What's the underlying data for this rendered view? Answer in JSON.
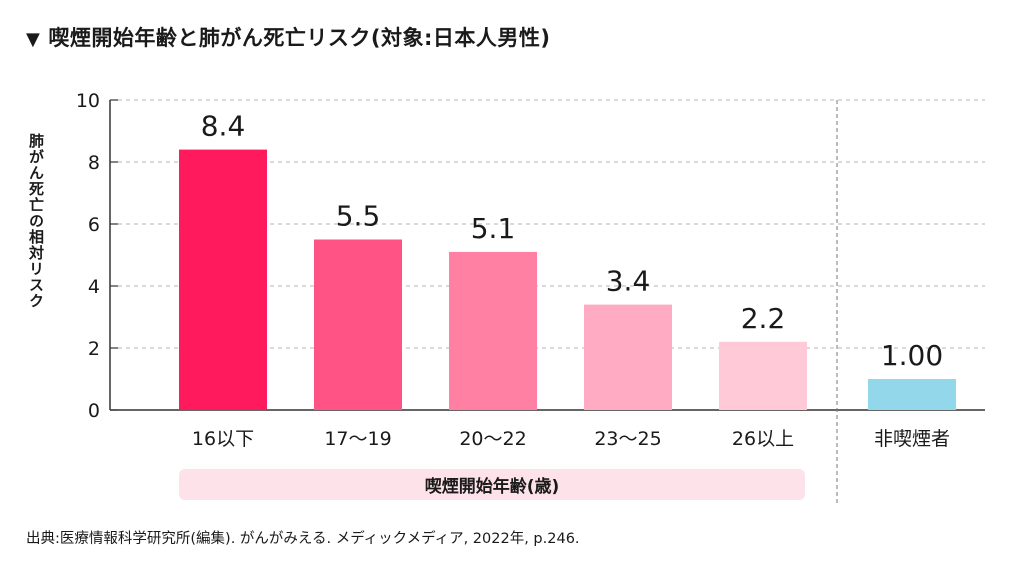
{
  "title": "喫煙開始年齢と肺がん死亡リスク(対象:日本人男性)",
  "title_marker": "▼",
  "source": "出典:医療情報科学研究所(編集). がんがみえる. メディックメディア, 2022年, p.246.",
  "chart_data": {
    "type": "bar",
    "title": "喫煙開始年齢と肺がん死亡リスク(対象:日本人男性)",
    "ylabel": "肺がん死亡の相対リスク",
    "xlabel": "喫煙開始年齢(歳)",
    "ylim": [
      0,
      10
    ],
    "yticks": [
      "0",
      "2",
      "4",
      "6",
      "8",
      "10"
    ],
    "grid": true,
    "categories": [
      "16以下",
      "17～19",
      "20～22",
      "23～25",
      "26以上",
      "非喫煙者"
    ],
    "values": [
      8.4,
      5.5,
      5.1,
      3.4,
      2.2,
      1.0
    ],
    "value_labels": [
      "8.4",
      "5.5",
      "5.1",
      "3.4",
      "2.2",
      "1.00"
    ],
    "colors": [
      "#ff1a5e",
      "#ff5285",
      "#ff80a3",
      "#ffabc4",
      "#ffc9d8",
      "#93d8ea"
    ]
  }
}
